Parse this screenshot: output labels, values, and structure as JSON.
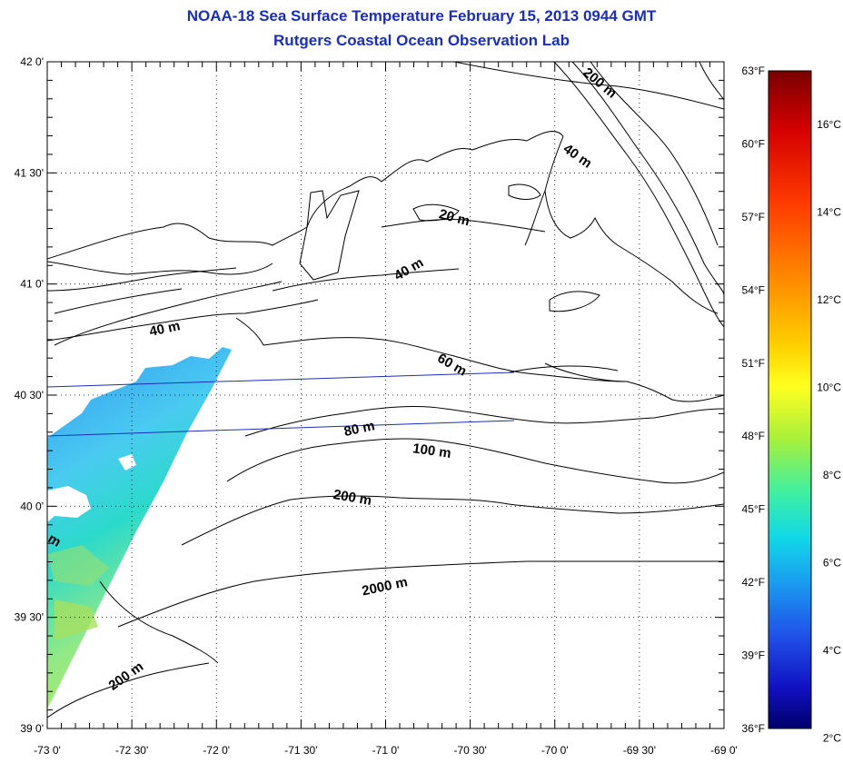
{
  "header": {
    "title": "NOAA-18 Sea Surface Temperature February 15, 2013 0944 GMT",
    "subtitle": "Rutgers Coastal Ocean Observation Lab"
  },
  "axes": {
    "lat_labels": [
      "42 0'",
      "41 30'",
      "41 0'",
      "40 30'",
      "40 0'",
      "39 30'",
      "39 0'"
    ],
    "lat_values": [
      42.0,
      41.5,
      41.0,
      40.5,
      40.0,
      39.5,
      39.0
    ],
    "lon_labels": [
      "-73 0'",
      "-72 30'",
      "-72 0'",
      "-71 30'",
      "-71 0'",
      "-70 30'",
      "-70 0'",
      "-69 30'",
      "-69 0'"
    ],
    "lon_values": [
      -73.0,
      -72.5,
      -72.0,
      -71.5,
      -71.0,
      -70.5,
      -70.0,
      -69.5,
      -69.0
    ],
    "lat_range": [
      39.0,
      42.0
    ],
    "lon_range": [
      -73.0,
      -69.0
    ]
  },
  "contour_labels": [
    {
      "text": "200 m",
      "lon": -69.75,
      "lat": 41.89,
      "angle": 40
    },
    {
      "text": "40 m",
      "lon": -69.88,
      "lat": 41.56,
      "angle": 35
    },
    {
      "text": "20 m",
      "lon": -70.6,
      "lat": 41.28,
      "angle": 15
    },
    {
      "text": "40 m",
      "lon": -70.85,
      "lat": 41.05,
      "angle": -30
    },
    {
      "text": "40 m",
      "lon": -72.3,
      "lat": 40.78,
      "angle": -12
    },
    {
      "text": "60 m",
      "lon": -70.62,
      "lat": 40.62,
      "angle": 30
    },
    {
      "text": "80 m",
      "lon": -71.15,
      "lat": 40.33,
      "angle": -12
    },
    {
      "text": "100 m",
      "lon": -70.73,
      "lat": 40.23,
      "angle": 8
    },
    {
      "text": "200 m",
      "lon": -71.2,
      "lat": 40.02,
      "angle": 10
    },
    {
      "text": "2000 m",
      "lon": -71.0,
      "lat": 39.62,
      "angle": -12
    },
    {
      "text": "200 m",
      "lon": -72.52,
      "lat": 39.22,
      "angle": -35
    },
    {
      "text": "m",
      "lon": -72.97,
      "lat": 39.83,
      "angle": 30
    }
  ],
  "colorbar": {
    "fahrenheit_labels": [
      "63°F",
      "60°F",
      "57°F",
      "54°F",
      "51°F",
      "48°F",
      "45°F",
      "42°F",
      "39°F",
      "36°F"
    ],
    "fahrenheit_values": [
      63,
      60,
      57,
      54,
      51,
      48,
      45,
      42,
      39,
      36
    ],
    "celsius_labels": [
      "16°C",
      "14°C",
      "12°C",
      "10°C",
      "8°C",
      "6°C",
      "4°C",
      "2°C"
    ],
    "celsius_values": [
      16,
      14,
      12,
      10,
      8,
      6,
      4,
      2
    ],
    "range_f": [
      36,
      63
    ],
    "colors": [
      "#7a0000",
      "#d40000",
      "#ff3a00",
      "#ff8c00",
      "#ffd200",
      "#ffff20",
      "#a8f03c",
      "#40f0a0",
      "#10d8e8",
      "#1a9af0",
      "#2050e8",
      "#1010c0",
      "#00006a"
    ]
  }
}
